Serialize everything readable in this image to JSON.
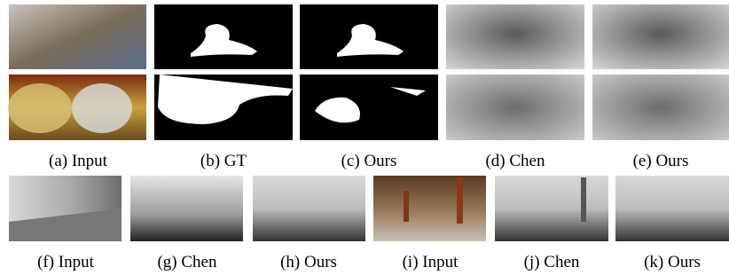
{
  "top_row": {
    "captions": [
      "(a) Input",
      "(b) GT",
      "(c) Ours",
      "(d) Chen",
      "(e) Ours"
    ]
  },
  "bottom_row": {
    "captions": [
      "(f) Input",
      "(g) Chen",
      "(h) Ours",
      "(i) Input",
      "(j) Chen",
      "(k) Ours"
    ]
  }
}
